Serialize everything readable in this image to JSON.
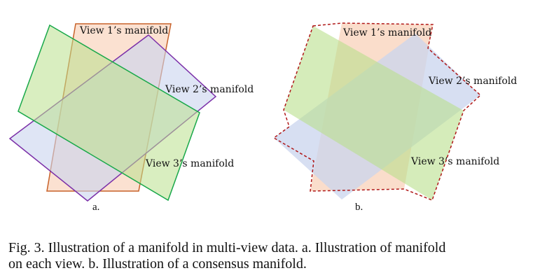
{
  "panel_a": {
    "label": "a.",
    "view1_label": "View 1’s manifold",
    "view2_label": "View 2’s manifold",
    "view3_label": "View 3’s manifold"
  },
  "panel_b": {
    "label": "b.",
    "view1_label": "View 1’s manifold",
    "view2_label": "View 2’s manifold",
    "view3_label": "View 3’s manifold"
  },
  "caption": {
    "line1": "Fig. 3.  Illustration of a manifold in multi-view data. a. Illustration of manifold",
    "line2": "on each view. b. Illustration of a consensus manifold."
  },
  "colors": {
    "view1_fill": "#f9d7c2",
    "view1_stroke": "#c8622a",
    "view2_fill": "#c9d4ee",
    "view2_stroke": "#7b2fa8",
    "view3_fill": "#b9e08c",
    "view3_stroke": "#19a84a",
    "consensus_stroke": "#b01818"
  }
}
